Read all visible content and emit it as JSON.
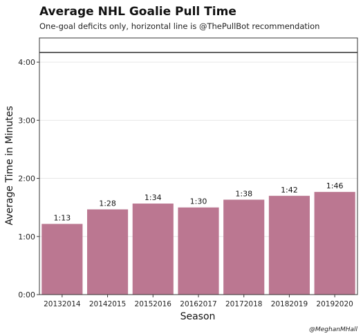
{
  "chart_data": {
    "type": "bar",
    "title": "Average NHL Goalie Pull Time",
    "subtitle": "One-goal deficits only, horizontal line is @ThePullBot recommendation",
    "xlabel": "Season",
    "ylabel": "Average Time in Minutes",
    "credit": "@MeghanMHall",
    "categories": [
      "20132014",
      "20142015",
      "20152016",
      "20162017",
      "20172018",
      "20182019",
      "20192020"
    ],
    "values": [
      73,
      88,
      94,
      90,
      98,
      102,
      106
    ],
    "data_labels": [
      "1:13",
      "1:28",
      "1:34",
      "1:30",
      "1:38",
      "1:42",
      "1:46"
    ],
    "reference_line": {
      "value": 250
    },
    "ylim": [
      0,
      265
    ],
    "yticks": [
      0,
      60,
      120,
      180,
      240
    ],
    "ytick_labels": [
      "0:00",
      "1:00",
      "2:00",
      "3:00",
      "4:00"
    ],
    "grid": true,
    "colors": {
      "bar": "#bb7791",
      "line": "#1a1a1a",
      "grid": "#e6e6e6",
      "frame": "#333333"
    }
  }
}
